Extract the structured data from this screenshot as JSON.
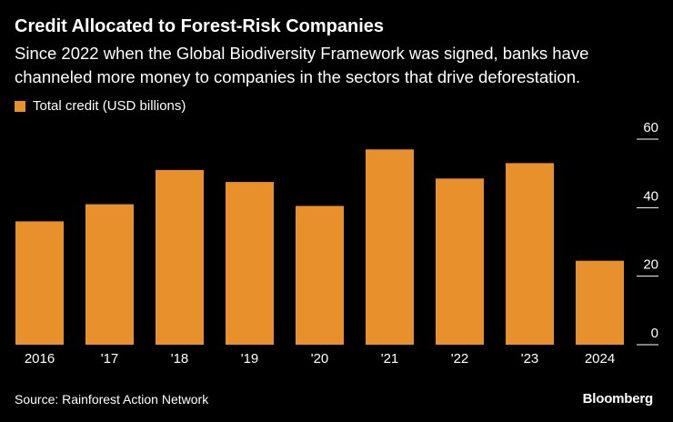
{
  "chart_data": {
    "type": "bar",
    "title": "Credit Allocated to Forest-Risk Companies",
    "subtitle": "Since 2022 when the Global Biodiversity Framework was signed, banks have channeled more money to companies in the sectors that drive deforestation.",
    "categories": [
      "2016",
      "'17",
      "'18",
      "'19",
      "'20",
      "'21",
      "'22",
      "'23",
      "2024"
    ],
    "series": [
      {
        "name": "Total credit (USD billions)",
        "values": [
          36,
          41,
          51,
          47.5,
          40.5,
          57,
          48.5,
          53,
          24.5
        ]
      }
    ],
    "ylim": [
      0,
      60
    ],
    "yticks": [
      0,
      20,
      40,
      60
    ],
    "y_axis_side": "right",
    "grid": false,
    "legend_position": "top-left",
    "source": "Source: Rainforest Action Network"
  },
  "colors": {
    "background": "#000000",
    "bar": "#e8912c",
    "text": "#ffffff",
    "tick": "#ffffff"
  },
  "branding": {
    "logo_text": "Bloomberg"
  }
}
